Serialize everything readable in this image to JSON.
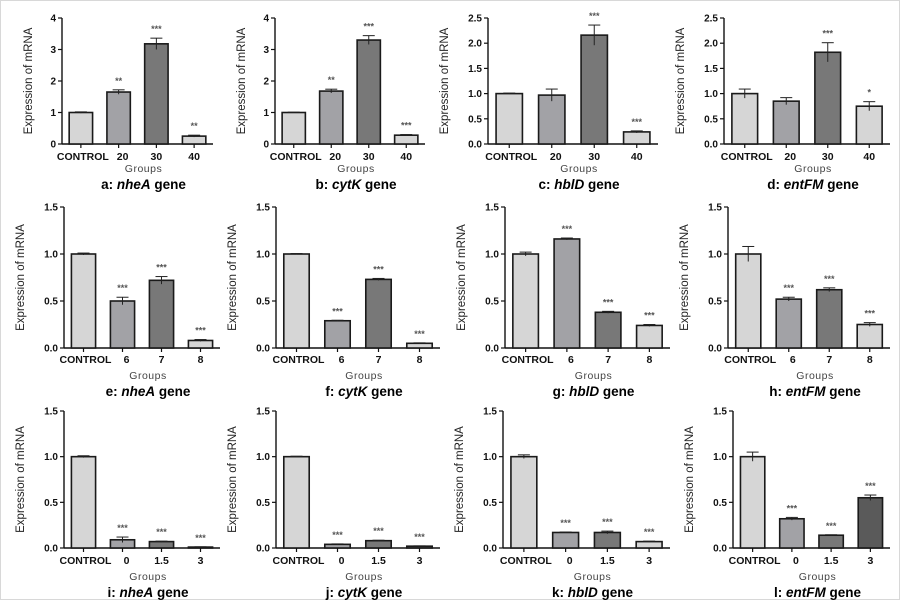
{
  "figure": {
    "shared_ylabel": "Expression of mRNA",
    "shared_xlabel": "Groups"
  },
  "colors": {
    "control": "#d6d6d6",
    "mid_light": "#a2a2a6",
    "dark": "#787878",
    "pale": "#d6d6d6",
    "darkest": "#5a5a5a",
    "edge": "#1a1a1a"
  },
  "chart_data": [
    {
      "type": "bar",
      "panel": "a",
      "caption_prefix": "a: ",
      "gene": "nheA",
      "caption_suffix": " gene",
      "title": "a: nheA gene",
      "xlabel": "Groups",
      "ylabel": "Expression of mRNA",
      "categories": [
        "CONTROL",
        "20",
        "30",
        "40"
      ],
      "values": [
        1.0,
        1.65,
        3.18,
        0.25
      ],
      "errors": [
        0.02,
        0.07,
        0.18,
        0.03
      ],
      "significance": [
        "",
        "**",
        "***",
        "**"
      ],
      "bar_colors": [
        "control",
        "mid_light",
        "dark",
        "pale"
      ],
      "ylim": [
        0,
        4
      ],
      "yticks": [
        "0",
        "1",
        "2",
        "3",
        "4"
      ],
      "ytick_values": [
        0,
        1,
        2,
        3,
        4
      ],
      "grid": false
    },
    {
      "type": "bar",
      "panel": "b",
      "caption_prefix": "b: ",
      "gene": "cytK",
      "caption_suffix": " gene",
      "title": "b: cytK gene",
      "xlabel": "Groups",
      "ylabel": "Expression of mRNA",
      "categories": [
        "CONTROL",
        "20",
        "30",
        "40"
      ],
      "values": [
        1.0,
        1.68,
        3.3,
        0.28
      ],
      "errors": [
        0.01,
        0.06,
        0.14,
        0.02
      ],
      "significance": [
        "",
        "**",
        "***",
        "***"
      ],
      "bar_colors": [
        "control",
        "mid_light",
        "dark",
        "pale"
      ],
      "ylim": [
        0,
        4
      ],
      "yticks": [
        "0",
        "1",
        "2",
        "3",
        "4"
      ],
      "ytick_values": [
        0,
        1,
        2,
        3,
        4
      ],
      "grid": false
    },
    {
      "type": "bar",
      "panel": "c",
      "caption_prefix": "c: ",
      "gene": "hblD",
      "caption_suffix": " gene",
      "title": "c: hblD gene",
      "xlabel": "Groups",
      "ylabel": "Expression of mRNA",
      "categories": [
        "CONTROL",
        "20",
        "30",
        "40"
      ],
      "values": [
        1.0,
        0.97,
        2.16,
        0.24
      ],
      "errors": [
        0.01,
        0.12,
        0.2,
        0.02
      ],
      "significance": [
        "",
        "",
        "***",
        "***"
      ],
      "bar_colors": [
        "control",
        "mid_light",
        "dark",
        "pale"
      ],
      "ylim": [
        0,
        2.5
      ],
      "yticks": [
        "0.0",
        "0.5",
        "1.0",
        "1.5",
        "2.0",
        "2.5"
      ],
      "ytick_values": [
        0,
        0.5,
        1,
        1.5,
        2,
        2.5
      ],
      "grid": false
    },
    {
      "type": "bar",
      "panel": "d",
      "caption_prefix": "d: ",
      "gene": "entFM",
      "caption_suffix": " gene",
      "title": "d: entFM gene",
      "xlabel": "Groups",
      "ylabel": "Expression of mRNA",
      "categories": [
        "CONTROL",
        "20",
        "30",
        "40"
      ],
      "values": [
        1.0,
        0.85,
        1.82,
        0.75
      ],
      "errors": [
        0.09,
        0.07,
        0.19,
        0.09
      ],
      "significance": [
        "",
        "",
        "***",
        "*"
      ],
      "bar_colors": [
        "control",
        "mid_light",
        "dark",
        "pale"
      ],
      "ylim": [
        0,
        2.5
      ],
      "yticks": [
        "0.0",
        "0.5",
        "1.0",
        "1.5",
        "2.0",
        "2.5"
      ],
      "ytick_values": [
        0,
        0.5,
        1,
        1.5,
        2,
        2.5
      ],
      "grid": false
    },
    {
      "type": "bar",
      "panel": "e",
      "caption_prefix": "e: ",
      "gene": "nheA",
      "caption_suffix": " gene",
      "title": "e: nheA gene",
      "xlabel": "Groups",
      "ylabel": "Expression of mRNA",
      "categories": [
        "CONTROL",
        "6",
        "7",
        "8"
      ],
      "values": [
        1.0,
        0.5,
        0.72,
        0.08
      ],
      "errors": [
        0.01,
        0.04,
        0.04,
        0.01
      ],
      "significance": [
        "",
        "***",
        "***",
        "***"
      ],
      "bar_colors": [
        "control",
        "mid_light",
        "dark",
        "pale"
      ],
      "ylim": [
        0,
        1.5
      ],
      "yticks": [
        "0.0",
        "0.5",
        "1.0",
        "1.5"
      ],
      "ytick_values": [
        0,
        0.5,
        1,
        1.5
      ],
      "grid": false
    },
    {
      "type": "bar",
      "panel": "f",
      "caption_prefix": "f: ",
      "gene": "cytK",
      "caption_suffix": " gene",
      "title": "f: cytK gene",
      "xlabel": "Groups",
      "ylabel": "Expression of mRNA",
      "categories": [
        "CONTROL",
        "6",
        "7",
        "8"
      ],
      "values": [
        1.0,
        0.29,
        0.73,
        0.05
      ],
      "errors": [
        0.005,
        0.005,
        0.01,
        0.005
      ],
      "significance": [
        "",
        "***",
        "***",
        "***"
      ],
      "bar_colors": [
        "control",
        "mid_light",
        "dark",
        "pale"
      ],
      "ylim": [
        0,
        1.5
      ],
      "yticks": [
        "0.0",
        "0.5",
        "1.0",
        "1.5"
      ],
      "ytick_values": [
        0,
        0.5,
        1,
        1.5
      ],
      "grid": false
    },
    {
      "type": "bar",
      "panel": "g",
      "caption_prefix": "g: ",
      "gene": "hblD",
      "caption_suffix": " gene",
      "title": "g: hblD gene",
      "xlabel": "Groups",
      "ylabel": "Expression of mRNA",
      "categories": [
        "CONTROL",
        "6",
        "7",
        "8"
      ],
      "values": [
        1.0,
        1.16,
        0.38,
        0.24
      ],
      "errors": [
        0.02,
        0.01,
        0.01,
        0.01
      ],
      "significance": [
        "",
        "***",
        "***",
        "***"
      ],
      "bar_colors": [
        "control",
        "mid_light",
        "dark",
        "pale"
      ],
      "ylim": [
        0,
        1.5
      ],
      "yticks": [
        "0.0",
        "0.5",
        "1.0",
        "1.5"
      ],
      "ytick_values": [
        0,
        0.5,
        1,
        1.5
      ],
      "grid": false
    },
    {
      "type": "bar",
      "panel": "h",
      "caption_prefix": "h: ",
      "gene": "entFM",
      "caption_suffix": " gene",
      "title": "h: entFM gene",
      "xlabel": "Groups",
      "ylabel": "Expression of mRNA",
      "categories": [
        "CONTROL",
        "6",
        "7",
        "8"
      ],
      "values": [
        1.0,
        0.52,
        0.62,
        0.25
      ],
      "errors": [
        0.08,
        0.02,
        0.02,
        0.02
      ],
      "significance": [
        "",
        "***",
        "***",
        "***"
      ],
      "bar_colors": [
        "control",
        "mid_light",
        "dark",
        "pale"
      ],
      "ylim": [
        0,
        1.5
      ],
      "yticks": [
        "0.0",
        "0.5",
        "1.0",
        "1.5"
      ],
      "ytick_values": [
        0,
        0.5,
        1,
        1.5
      ],
      "grid": false
    },
    {
      "type": "bar",
      "panel": "i",
      "caption_prefix": "i: ",
      "gene": "nheA",
      "caption_suffix": " gene",
      "title": "i: nheA gene",
      "xlabel": "Groups",
      "ylabel": "Expression of mRNA",
      "categories": [
        "CONTROL",
        "0",
        "1.5",
        "3"
      ],
      "values": [
        1.0,
        0.09,
        0.07,
        0.01
      ],
      "errors": [
        0.01,
        0.03,
        0.005,
        0.003
      ],
      "significance": [
        "",
        "***",
        "***",
        "***"
      ],
      "bar_colors": [
        "control",
        "mid_light",
        "dark",
        "darkest"
      ],
      "ylim": [
        0,
        1.5
      ],
      "yticks": [
        "0.0",
        "0.5",
        "1.0",
        "1.5"
      ],
      "ytick_values": [
        0,
        0.5,
        1,
        1.5
      ],
      "grid": false
    },
    {
      "type": "bar",
      "panel": "j",
      "caption_prefix": "j: ",
      "gene": "cytK",
      "caption_suffix": " gene",
      "title": "j: cytK gene",
      "xlabel": "Groups",
      "ylabel": "Expression of mRNA",
      "categories": [
        "CONTROL",
        "0",
        "1.5",
        "3"
      ],
      "values": [
        1.0,
        0.04,
        0.08,
        0.02
      ],
      "errors": [
        0.005,
        0.005,
        0.005,
        0.003
      ],
      "significance": [
        "",
        "***",
        "***",
        "***"
      ],
      "bar_colors": [
        "control",
        "mid_light",
        "dark",
        "darkest"
      ],
      "ylim": [
        0,
        1.5
      ],
      "yticks": [
        "0.0",
        "0.5",
        "1.0",
        "1.5"
      ],
      "ytick_values": [
        0,
        0.5,
        1,
        1.5
      ],
      "grid": false
    },
    {
      "type": "bar",
      "panel": "k",
      "caption_prefix": "k: ",
      "gene": "hblD",
      "caption_suffix": " gene",
      "title": "k: hblD gene",
      "xlabel": "Groups",
      "ylabel": "Expression of mRNA",
      "categories": [
        "CONTROL",
        "0",
        "1.5",
        "3"
      ],
      "values": [
        1.0,
        0.17,
        0.17,
        0.07
      ],
      "errors": [
        0.02,
        0.005,
        0.015,
        0.005
      ],
      "significance": [
        "",
        "***",
        "***",
        "***"
      ],
      "bar_colors": [
        "control",
        "mid_light",
        "dark",
        "pale"
      ],
      "ylim": [
        0,
        1.5
      ],
      "yticks": [
        "0.0",
        "0.5",
        "1.0",
        "1.5"
      ],
      "ytick_values": [
        0,
        0.5,
        1,
        1.5
      ],
      "grid": false
    },
    {
      "type": "bar",
      "panel": "l",
      "caption_prefix": "l: ",
      "gene": "entFM",
      "caption_suffix": " gene",
      "title": "l: entFM gene",
      "xlabel": "Groups",
      "ylabel": "Expression of mRNA",
      "categories": [
        "CONTROL",
        "0",
        "1.5",
        "3"
      ],
      "values": [
        1.0,
        0.32,
        0.14,
        0.55
      ],
      "errors": [
        0.05,
        0.015,
        0.005,
        0.03
      ],
      "significance": [
        "",
        "***",
        "***",
        "***"
      ],
      "bar_colors": [
        "control",
        "mid_light",
        "dark",
        "darkest"
      ],
      "ylim": [
        0,
        1.5
      ],
      "yticks": [
        "0.0",
        "0.5",
        "1.0",
        "1.5"
      ],
      "ytick_values": [
        0,
        0.5,
        1,
        1.5
      ],
      "grid": false
    }
  ]
}
